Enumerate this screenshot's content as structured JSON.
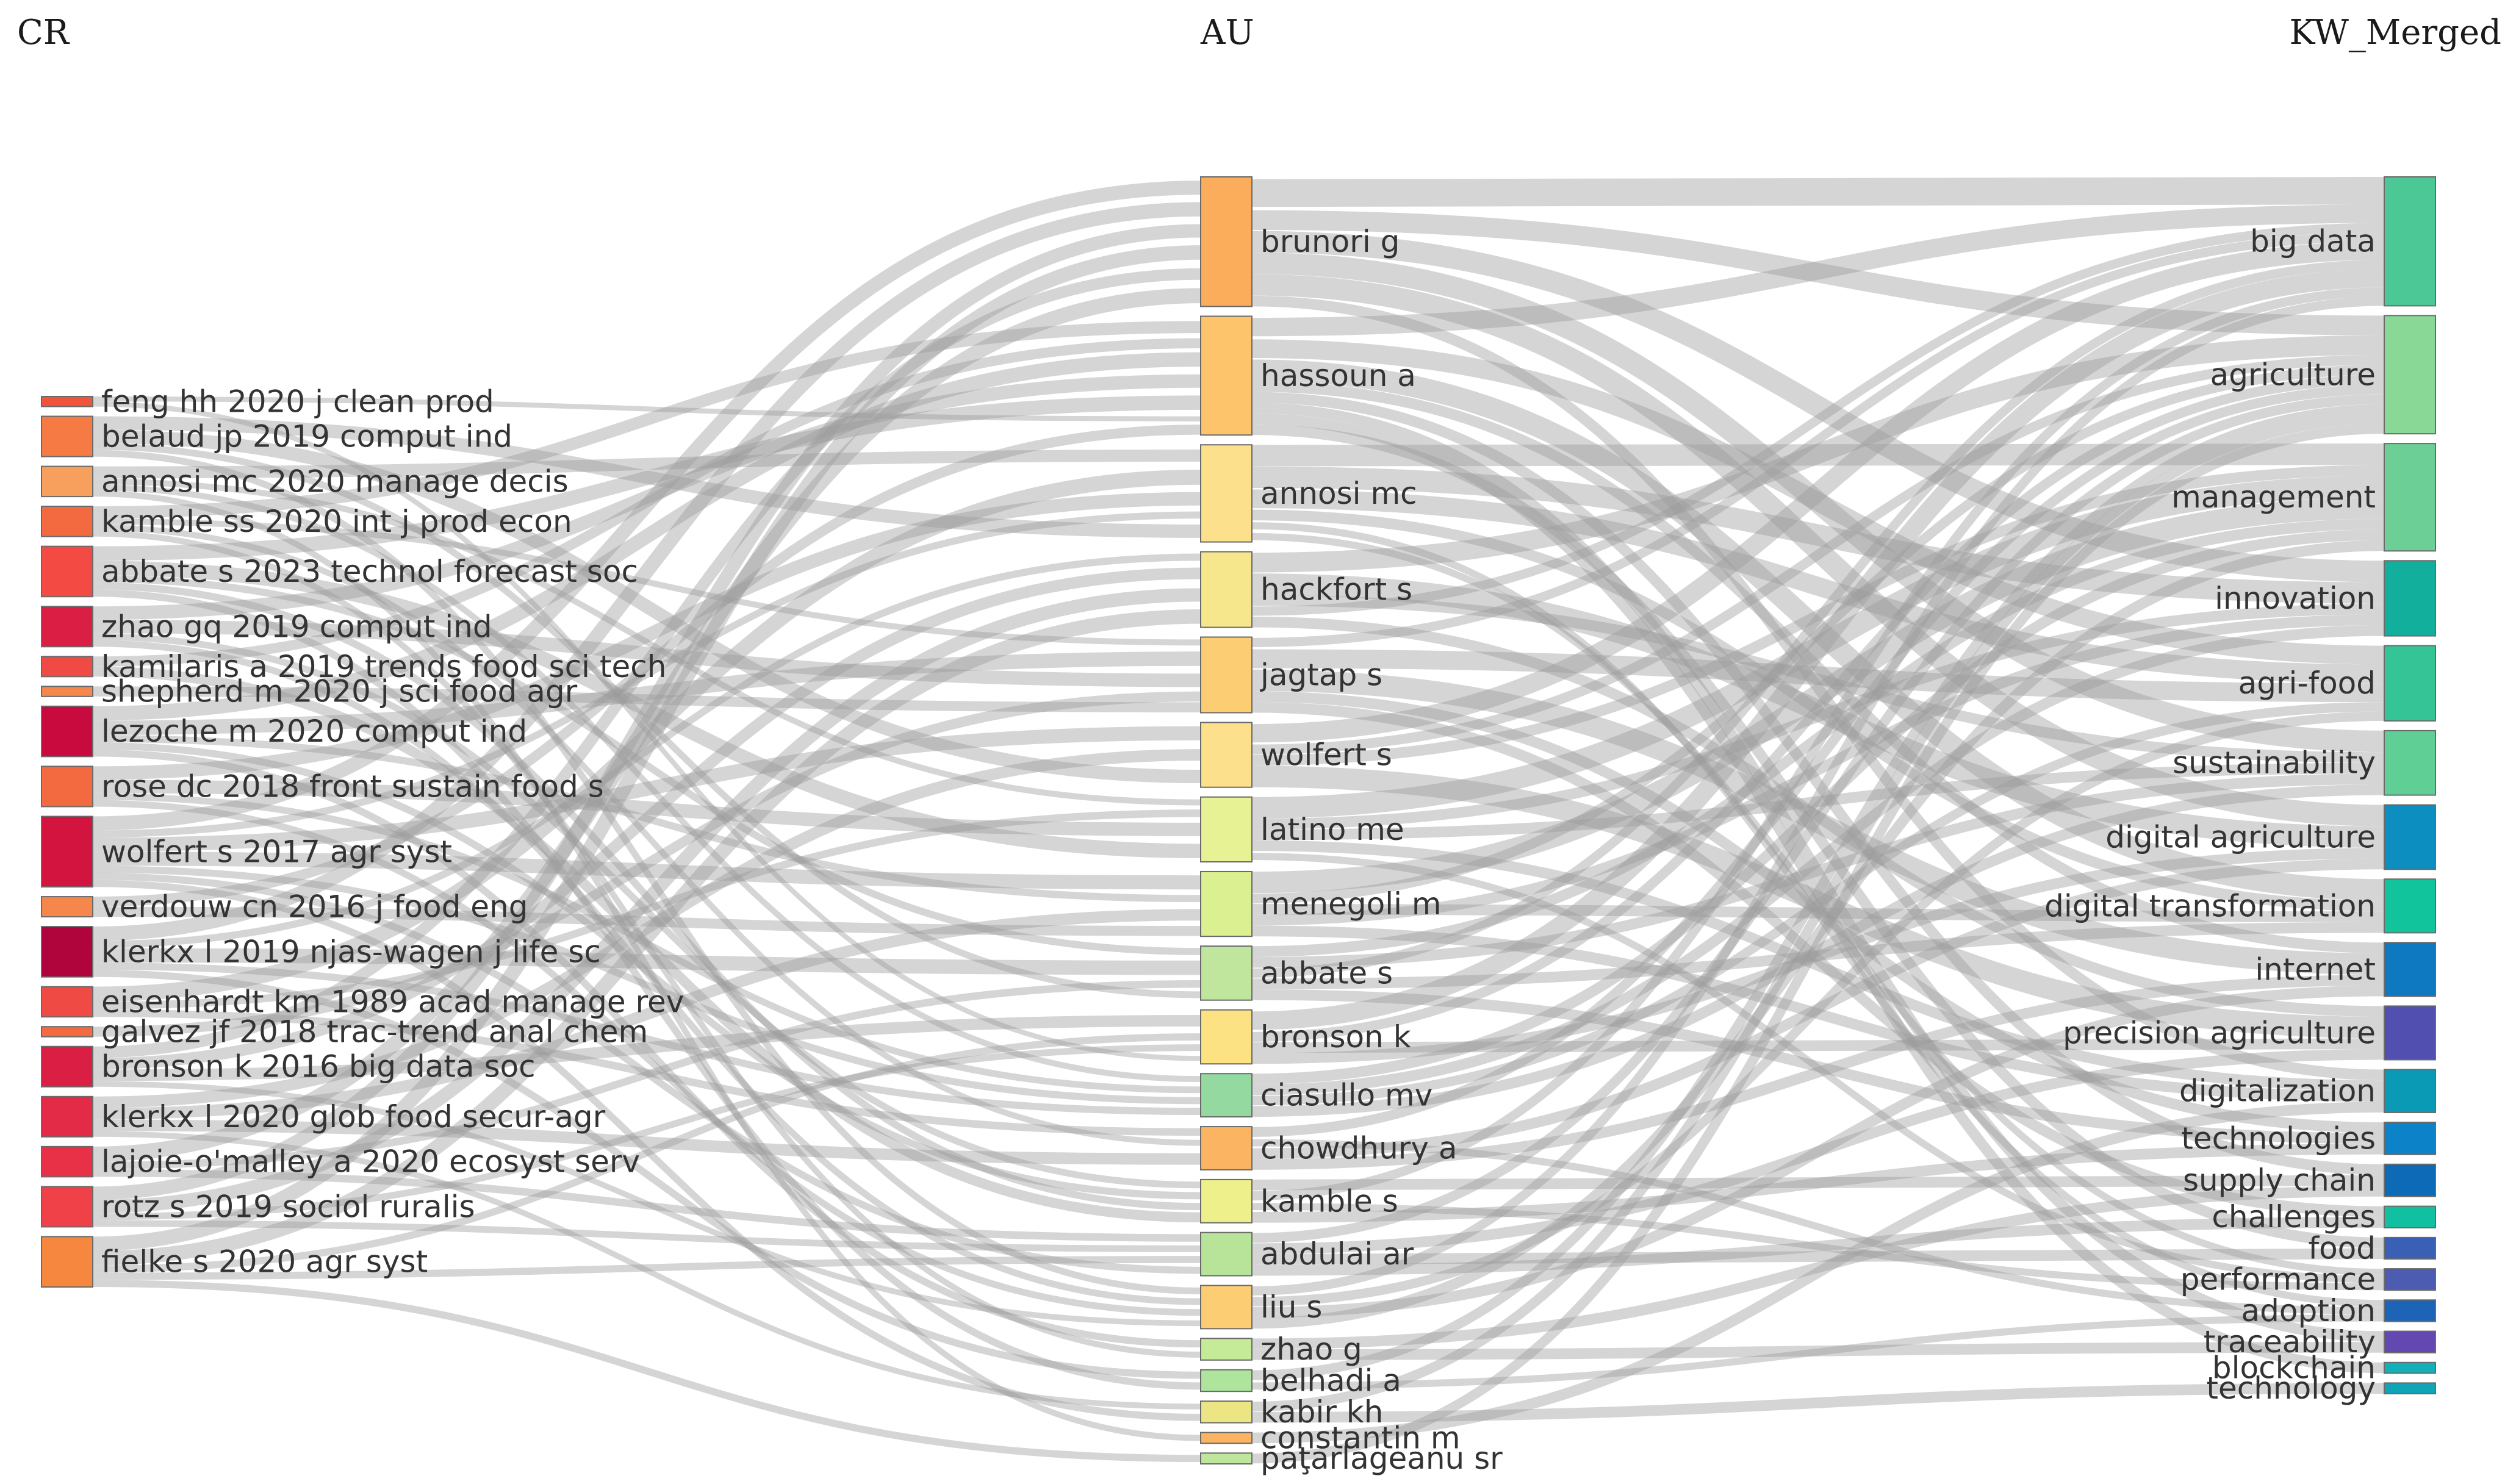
{
  "chart_data": {
    "type": "sankey",
    "columns": [
      {
        "header": "CR",
        "nodes": [
          {
            "label": "feng hh 2020 j clean prod",
            "value": 1,
            "color": "#f0553c"
          },
          {
            "label": "belaud jp 2019 comput ind",
            "value": 4,
            "color": "#f57a44"
          },
          {
            "label": "annosi mc 2020 manage decis",
            "value": 3,
            "color": "#f79f5c"
          },
          {
            "label": "kamble ss 2020 int j prod econ",
            "value": 3,
            "color": "#f46a40"
          },
          {
            "label": "abbate s 2023 technol forecast soc",
            "value": 5,
            "color": "#f44a44"
          },
          {
            "label": "zhao gq 2019 comput ind",
            "value": 4,
            "color": "#db1e43"
          },
          {
            "label": "kamilaris a 2019 trends food sci tech",
            "value": 2,
            "color": "#f04a44"
          },
          {
            "label": "shepherd m 2020 j sci food agr",
            "value": 1,
            "color": "#f5874c"
          },
          {
            "label": "lezoche m 2020 comput ind",
            "value": 5,
            "color": "#c80a3e"
          },
          {
            "label": "rose dc 2018 front sustain food s",
            "value": 4,
            "color": "#f46a40"
          },
          {
            "label": "wolfert s 2017 agr syst",
            "value": 7,
            "color": "#d2143f"
          },
          {
            "label": "verdouw cn 2016 j food eng",
            "value": 2,
            "color": "#f5874c"
          },
          {
            "label": "klerkx l 2019 njas-wagen j life sc",
            "value": 5,
            "color": "#b0053c"
          },
          {
            "label": "eisenhardt km 1989 acad manage rev",
            "value": 3,
            "color": "#f04a44"
          },
          {
            "label": "galvez jf 2018 trac-trend anal chem",
            "value": 1,
            "color": "#f46a40"
          },
          {
            "label": "bronson k 2016 big data soc",
            "value": 4,
            "color": "#db1e43"
          },
          {
            "label": "klerkx l 2020 glob food secur-agr",
            "value": 4,
            "color": "#e32a46"
          },
          {
            "label": "lajoie-o'malley a 2020 ecosyst serv",
            "value": 3,
            "color": "#e83046"
          },
          {
            "label": "rotz s 2019 sociol ruralis",
            "value": 4,
            "color": "#f04048"
          },
          {
            "label": "fielke s 2020 agr syst",
            "value": 5,
            "color": "#f5873f"
          }
        ]
      },
      {
        "header": "AU",
        "nodes": [
          {
            "label": "brunori g",
            "value": 12,
            "color": "#fbad5c"
          },
          {
            "label": "hassoun a",
            "value": 11,
            "color": "#fdc46c"
          },
          {
            "label": "annosi mc",
            "value": 9,
            "color": "#fde08c"
          },
          {
            "label": "hackfort s",
            "value": 7,
            "color": "#f6e78c"
          },
          {
            "label": "jagtap s",
            "value": 7,
            "color": "#fdcd74"
          },
          {
            "label": "wolfert s",
            "value": 6,
            "color": "#fde08c"
          },
          {
            "label": "latino me",
            "value": 6,
            "color": "#e6f294"
          },
          {
            "label": "menegoli m",
            "value": 6,
            "color": "#dbf090"
          },
          {
            "label": "abbate s",
            "value": 5,
            "color": "#bfe69c"
          },
          {
            "label": "bronson k",
            "value": 5,
            "color": "#fde284"
          },
          {
            "label": "ciasullo mv",
            "value": 4,
            "color": "#93d9a0"
          },
          {
            "label": "chowdhury a",
            "value": 4,
            "color": "#fbb462"
          },
          {
            "label": "kamble s",
            "value": 4,
            "color": "#eef08c"
          },
          {
            "label": "abdulai ar",
            "value": 4,
            "color": "#b8e49a"
          },
          {
            "label": "liu s",
            "value": 4,
            "color": "#fdcd74"
          },
          {
            "label": "zhao g",
            "value": 2,
            "color": "#c6eb98"
          },
          {
            "label": "belhadi a",
            "value": 2,
            "color": "#aee49c"
          },
          {
            "label": "kabir kh",
            "value": 2,
            "color": "#ece584"
          },
          {
            "label": "constantin m",
            "value": 1,
            "color": "#fbb462"
          },
          {
            "label": "paţarlageanu sr",
            "value": 1,
            "color": "#bfe69c"
          }
        ]
      },
      {
        "header": "KW_Merged",
        "nodes": [
          {
            "label": "big data",
            "value": 12,
            "color": "#4cc896"
          },
          {
            "label": "agriculture",
            "value": 11,
            "color": "#8ad896"
          },
          {
            "label": "management",
            "value": 10,
            "color": "#6ccf96"
          },
          {
            "label": "innovation",
            "value": 7,
            "color": "#12b09c"
          },
          {
            "label": "agri-food",
            "value": 7,
            "color": "#34c496"
          },
          {
            "label": "sustainability",
            "value": 6,
            "color": "#60cf96"
          },
          {
            "label": "digital agriculture",
            "value": 6,
            "color": "#0c8ec0"
          },
          {
            "label": "digital transformation",
            "value": 5,
            "color": "#12c49c"
          },
          {
            "label": "internet",
            "value": 5,
            "color": "#0e78c0"
          },
          {
            "label": "precision agriculture",
            "value": 5,
            "color": "#5150b0"
          },
          {
            "label": "digitalization",
            "value": 4,
            "color": "#0a9ab6"
          },
          {
            "label": "technologies",
            "value": 3,
            "color": "#0c82c8"
          },
          {
            "label": "supply chain",
            "value": 3,
            "color": "#0c6ab6"
          },
          {
            "label": "challenges",
            "value": 2,
            "color": "#10c0a0"
          },
          {
            "label": "food",
            "value": 2,
            "color": "#3a60b6"
          },
          {
            "label": "performance",
            "value": 2,
            "color": "#4d5cb0"
          },
          {
            "label": "adoption",
            "value": 2,
            "color": "#1e64b6"
          },
          {
            "label": "traceability",
            "value": 2,
            "color": "#6248b0"
          },
          {
            "label": "blockchain",
            "value": 1,
            "color": "#12b0b8"
          },
          {
            "label": "technology",
            "value": 1,
            "color": "#10a4b6"
          }
        ]
      }
    ],
    "links_CR_AU": [
      [
        "wolfert s 2017 agr syst",
        "brunori g",
        2
      ],
      [
        "klerkx l 2019 njas-wagen j life sc",
        "brunori g",
        2
      ],
      [
        "rotz s 2019 sociol ruralis",
        "brunori g",
        2
      ],
      [
        "fielke s 2020 agr syst",
        "brunori g",
        2
      ],
      [
        "bronson k 2016 big data soc",
        "brunori g",
        2
      ],
      [
        "lajoie-o'malley a 2020 ecosyst serv",
        "brunori g",
        2
      ],
      [
        "kamble ss 2020 int j prod econ",
        "hassoun a",
        2
      ],
      [
        "kamilaris a 2019 trends food sci tech",
        "hassoun a",
        1
      ],
      [
        "lezoche m 2020 comput ind",
        "hassoun a",
        2
      ],
      [
        "zhao gq 2019 comput ind",
        "hassoun a",
        2
      ],
      [
        "abbate s 2023 technol forecast soc",
        "hassoun a",
        2
      ],
      [
        "feng hh 2020 j clean prod",
        "hassoun a",
        1
      ],
      [
        "verdouw cn 2016 j food eng",
        "hassoun a",
        1
      ],
      [
        "annosi mc 2020 manage decis",
        "annosi mc",
        2
      ],
      [
        "eisenhardt km 1989 acad manage rev",
        "annosi mc",
        2
      ],
      [
        "rose dc 2018 front sustain food s",
        "annosi mc",
        2
      ],
      [
        "wolfert s 2017 agr syst",
        "annosi mc",
        1
      ],
      [
        "belaud jp 2019 comput ind",
        "annosi mc",
        2
      ],
      [
        "klerkx l 2019 njas-wagen j life sc",
        "hackfort s",
        1
      ],
      [
        "bronson k 2016 big data soc",
        "hackfort s",
        2
      ],
      [
        "rotz s 2019 sociol ruralis",
        "hackfort s",
        2
      ],
      [
        "fielke s 2020 agr syst",
        "hackfort s",
        2
      ],
      [
        "kamble ss 2020 int j prod econ",
        "jagtap s",
        1
      ],
      [
        "lezoche m 2020 comput ind",
        "jagtap s",
        2
      ],
      [
        "zhao gq 2019 comput ind",
        "jagtap s",
        2
      ],
      [
        "galvez jf 2018 trac-trend anal chem",
        "jagtap s",
        1
      ],
      [
        "shepherd m 2020 j sci food agr",
        "jagtap s",
        1
      ],
      [
        "wolfert s 2017 agr syst",
        "wolfert s",
        2
      ],
      [
        "klerkx l 2020 glob food secur-agr",
        "wolfert s",
        2
      ],
      [
        "belaud jp 2019 comput ind",
        "wolfert s",
        2
      ],
      [
        "annosi mc 2020 manage decis",
        "latino me",
        1
      ],
      [
        "eisenhardt km 1989 acad manage rev",
        "latino me",
        1
      ],
      [
        "rose dc 2018 front sustain food s",
        "latino me",
        2
      ],
      [
        "abbate s 2023 technol forecast soc",
        "latino me",
        2
      ],
      [
        "wolfert s 2017 agr syst",
        "menegoli m",
        2
      ],
      [
        "lezoche m 2020 comput ind",
        "menegoli m",
        1
      ],
      [
        "klerkx l 2020 glob food secur-agr",
        "menegoli m",
        2
      ],
      [
        "verdouw cn 2016 j food eng",
        "menegoli m",
        1
      ],
      [
        "abbate s 2023 technol forecast soc",
        "abbate s",
        1
      ],
      [
        "klerkx l 2019 njas-wagen j life sc",
        "abbate s",
        2
      ],
      [
        "lajoie-o'malley a 2020 ecosyst serv",
        "abbate s",
        1
      ],
      [
        "belaud jp 2019 comput ind",
        "abbate s",
        1
      ],
      [
        "bronson k 2016 big data soc",
        "bronson k",
        2
      ],
      [
        "fielke s 2020 agr syst",
        "bronson k",
        1
      ],
      [
        "rotz s 2019 sociol ruralis",
        "bronson k",
        1
      ],
      [
        "feng hh 2020 j clean prod",
        "bronson k",
        1
      ],
      [
        "annosi mc 2020 manage decis",
        "ciasullo mv",
        1
      ],
      [
        "rose dc 2018 front sustain food s",
        "ciasullo mv",
        1
      ],
      [
        "wolfert s 2017 agr syst",
        "ciasullo mv",
        1
      ],
      [
        "klerkx l 2019 njas-wagen j life sc",
        "ciasullo mv",
        1
      ],
      [
        "eisenhardt km 1989 acad manage rev",
        "chowdhury a",
        1
      ],
      [
        "kamble ss 2020 int j prod econ",
        "chowdhury a",
        1
      ],
      [
        "klerkx l 2020 glob food secur-agr",
        "chowdhury a",
        2
      ],
      [
        "zhao gq 2019 comput ind",
        "kamble s",
        1
      ],
      [
        "lezoche m 2020 comput ind",
        "kamble s",
        1
      ],
      [
        "abbate s 2023 technol forecast soc",
        "kamble s",
        1
      ],
      [
        "kamilaris a 2019 trends food sci tech",
        "kamble s",
        1
      ],
      [
        "lajoie-o'malley a 2020 ecosyst serv",
        "abdulai ar",
        1
      ],
      [
        "rotz s 2019 sociol ruralis",
        "abdulai ar",
        1
      ],
      [
        "fielke s 2020 agr syst",
        "abdulai ar",
        1
      ],
      [
        "wolfert s 2017 agr syst",
        "abdulai ar",
        1
      ],
      [
        "belaud jp 2019 comput ind",
        "liu s",
        1
      ],
      [
        "zhao gq 2019 comput ind",
        "liu s",
        1
      ],
      [
        "rose dc 2018 front sustain food s",
        "liu s",
        1
      ],
      [
        "bronson k 2016 big data soc",
        "liu s",
        1
      ],
      [
        "lezoche m 2020 comput ind",
        "zhao g",
        1
      ],
      [
        "kamble ss 2020 int j prod econ",
        "zhao g",
        1
      ],
      [
        "klerkx l 2019 njas-wagen j life sc",
        "belhadi a",
        1
      ],
      [
        "abbate s 2023 technol forecast soc",
        "belhadi a",
        1
      ],
      [
        "klerkx l 2020 glob food secur-agr",
        "kabir kh",
        1
      ],
      [
        "wolfert s 2017 agr syst",
        "kabir kh",
        1
      ],
      [
        "annosi mc 2020 manage decis",
        "constantin m",
        1
      ],
      [
        "fielke s 2020 agr syst",
        "paţarlageanu sr",
        1
      ]
    ],
    "links_AU_KW": [
      [
        "brunori g",
        "big data",
        3
      ],
      [
        "brunori g",
        "agriculture",
        2
      ],
      [
        "brunori g",
        "innovation",
        2
      ],
      [
        "brunori g",
        "sustainability",
        2
      ],
      [
        "brunori g",
        "digital agriculture",
        2
      ],
      [
        "brunori g",
        "digitalization",
        1
      ],
      [
        "hassoun a",
        "big data",
        2
      ],
      [
        "hassoun a",
        "agri-food",
        2
      ],
      [
        "hassoun a",
        "digital transformation",
        2
      ],
      [
        "hassoun a",
        "internet",
        1
      ],
      [
        "hassoun a",
        "supply chain",
        1
      ],
      [
        "hassoun a",
        "traceability",
        1
      ],
      [
        "hassoun a",
        "blockchain",
        1
      ],
      [
        "hassoun a",
        "food",
        1
      ],
      [
        "annosi mc",
        "management",
        2
      ],
      [
        "annosi mc",
        "innovation",
        2
      ],
      [
        "annosi mc",
        "agri-food",
        2
      ],
      [
        "annosi mc",
        "digital transformation",
        1
      ],
      [
        "annosi mc",
        "adoption",
        1
      ],
      [
        "annosi mc",
        "performance",
        1
      ],
      [
        "hackfort s",
        "agriculture",
        2
      ],
      [
        "hackfort s",
        "digital agriculture",
        2
      ],
      [
        "hackfort s",
        "sustainability",
        1
      ],
      [
        "hackfort s",
        "big data",
        1
      ],
      [
        "hackfort s",
        "precision agriculture",
        1
      ],
      [
        "jagtap s",
        "big data",
        1
      ],
      [
        "jagtap s",
        "agri-food",
        2
      ],
      [
        "jagtap s",
        "internet",
        2
      ],
      [
        "jagtap s",
        "technologies",
        1
      ],
      [
        "jagtap s",
        "challenges",
        1
      ],
      [
        "wolfert s",
        "big data",
        2
      ],
      [
        "wolfert s",
        "agriculture",
        1
      ],
      [
        "wolfert s",
        "management",
        1
      ],
      [
        "wolfert s",
        "precision agriculture",
        2
      ],
      [
        "latino me",
        "management",
        2
      ],
      [
        "latino me",
        "innovation",
        1
      ],
      [
        "latino me",
        "sustainability",
        1
      ],
      [
        "latino me",
        "digitalization",
        1
      ],
      [
        "latino me",
        "performance",
        1
      ],
      [
        "menegoli m",
        "management",
        2
      ],
      [
        "menegoli m",
        "agriculture",
        1
      ],
      [
        "menegoli m",
        "digital transformation",
        1
      ],
      [
        "menegoli m",
        "innovation",
        1
      ],
      [
        "menegoli m",
        "digitalization",
        1
      ],
      [
        "abbate s",
        "management",
        1
      ],
      [
        "abbate s",
        "sustainability",
        1
      ],
      [
        "abbate s",
        "big data",
        1
      ],
      [
        "abbate s",
        "digital transformation",
        1
      ],
      [
        "abbate s",
        "technologies",
        1
      ],
      [
        "bronson k",
        "big data",
        2
      ],
      [
        "bronson k",
        "agriculture",
        1
      ],
      [
        "bronson k",
        "precision agriculture",
        1
      ],
      [
        "bronson k",
        "digital agriculture",
        1
      ],
      [
        "ciasullo mv",
        "management",
        1
      ],
      [
        "ciasullo mv",
        "innovation",
        1
      ],
      [
        "ciasullo mv",
        "agri-food",
        1
      ],
      [
        "ciasullo mv",
        "sustainability",
        1
      ],
      [
        "chowdhury a",
        "agriculture",
        1
      ],
      [
        "chowdhury a",
        "adoption",
        1
      ],
      [
        "chowdhury a",
        "digital agriculture",
        1
      ],
      [
        "chowdhury a",
        "internet",
        1
      ],
      [
        "kamble s",
        "supply chain",
        1
      ],
      [
        "kamble s",
        "big data",
        1
      ],
      [
        "kamble s",
        "performance",
        1
      ],
      [
        "kamble s",
        "technologies",
        1
      ],
      [
        "abdulai ar",
        "agriculture",
        1
      ],
      [
        "abdulai ar",
        "precision agriculture",
        1
      ],
      [
        "abdulai ar",
        "food",
        1
      ],
      [
        "abdulai ar",
        "challenges",
        1
      ],
      [
        "liu s",
        "big data",
        1
      ],
      [
        "liu s",
        "agri-food",
        1
      ],
      [
        "liu s",
        "internet",
        1
      ],
      [
        "liu s",
        "management",
        1
      ],
      [
        "zhao g",
        "supply chain",
        1
      ],
      [
        "zhao g",
        "traceability",
        1
      ],
      [
        "belhadi a",
        "agriculture",
        1
      ],
      [
        "belhadi a",
        "adoption",
        1
      ],
      [
        "kabir kh",
        "agriculture",
        1
      ],
      [
        "kabir kh",
        "technology",
        1
      ],
      [
        "constantin m",
        "digitalization",
        1
      ],
      [
        "paţarlageanu sr",
        "agriculture",
        1
      ]
    ]
  }
}
